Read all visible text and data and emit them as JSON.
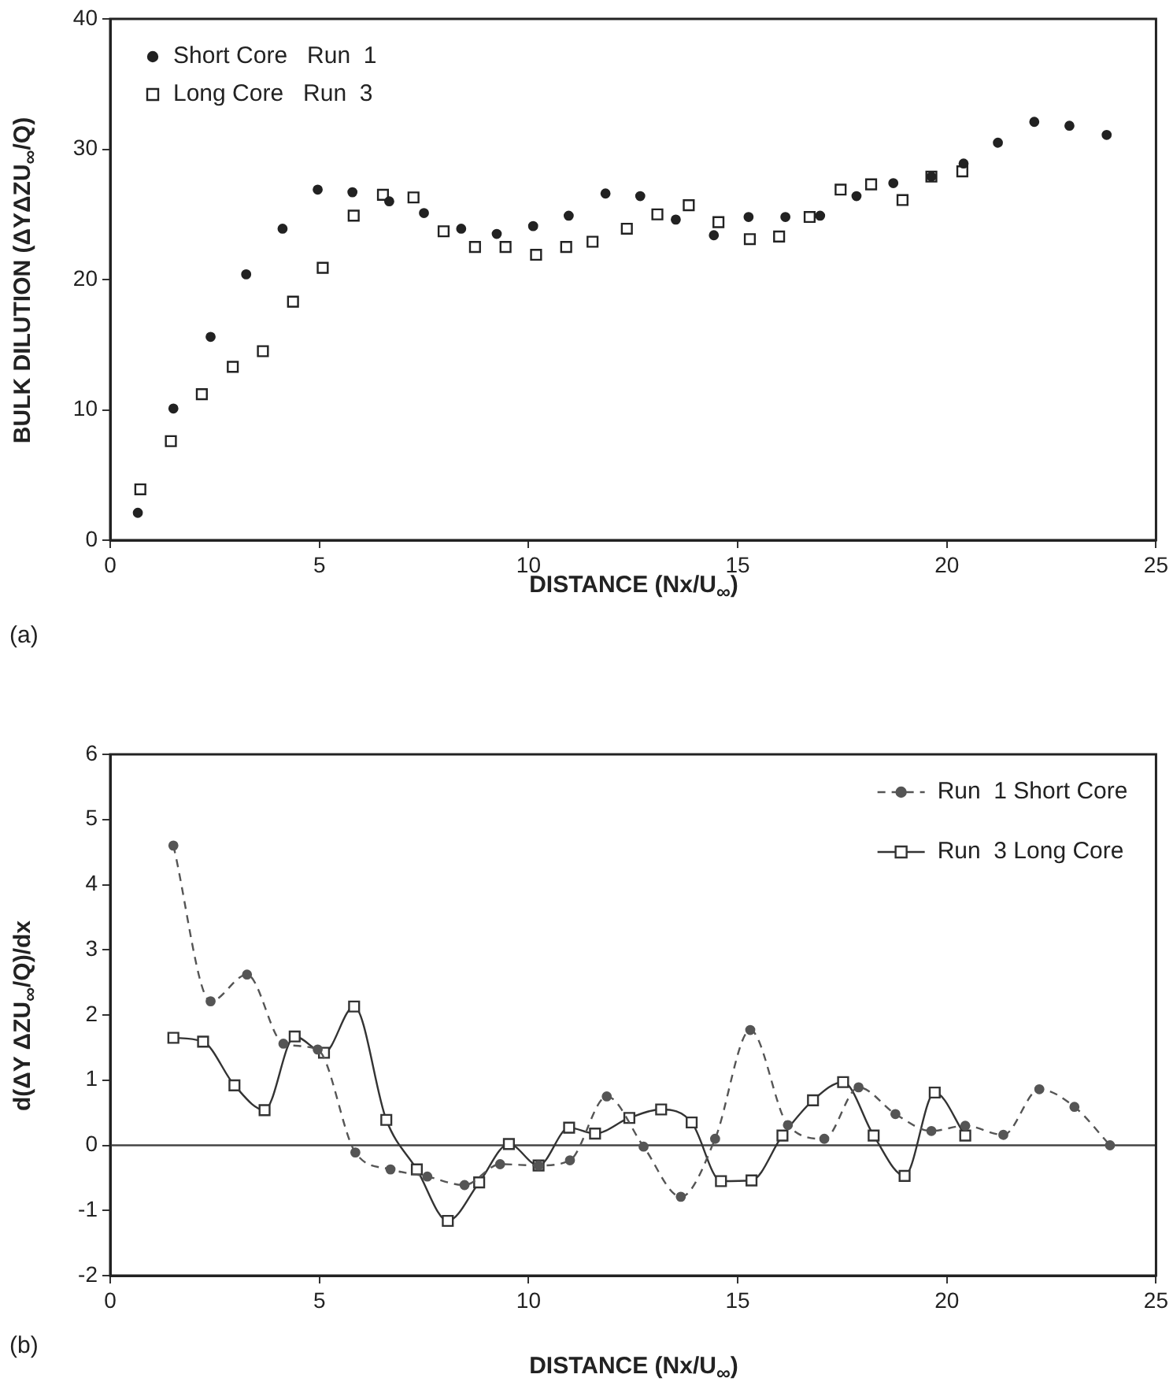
{
  "chart_data": [
    {
      "type": "scatter",
      "xlabel": "DISTANCE (Nx/U$_{∞}$)",
      "ylabel": "BULK DILUTION (ΔYΔZU$_{∞}$/Q)",
      "annotations": [
        "(a)"
      ],
      "xlim": [
        0,
        25
      ],
      "xticks": [
        0,
        5,
        10,
        15,
        20,
        25
      ],
      "ylim": [
        0,
        40
      ],
      "yticks": [
        0,
        10,
        20,
        30,
        40
      ],
      "legend": "top left",
      "series": [
        {
          "name": "Short Core   Run  1",
          "color": "#222222",
          "marker": "circle",
          "x": [
            0.66,
            1.51,
            2.4,
            3.25,
            4.12,
            4.96,
            5.79,
            6.67,
            7.5,
            8.39,
            9.24,
            10.11,
            10.96,
            11.84,
            12.67,
            13.52,
            14.43,
            15.26,
            16.14,
            16.97,
            17.84,
            18.72,
            19.63,
            20.4,
            21.22,
            22.09,
            22.93,
            23.82
          ],
          "values": [
            2.1,
            10.1,
            15.6,
            20.4,
            23.9,
            26.9,
            26.7,
            26,
            25.1,
            23.9,
            23.5,
            24.1,
            24.9,
            26.6,
            26.4,
            24.6,
            23.4,
            24.8,
            24.8,
            24.9,
            26.4,
            27.4,
            27.9,
            28.9,
            30.5,
            32.1,
            31.8,
            31.1
          ]
        },
        {
          "name": "Long Core   Run  3",
          "color": "#222222",
          "marker": "square",
          "x": [
            0.72,
            1.45,
            2.19,
            2.93,
            3.65,
            4.37,
            5.08,
            5.82,
            6.52,
            7.25,
            7.97,
            8.72,
            9.45,
            10.18,
            10.9,
            11.53,
            12.35,
            13.08,
            13.83,
            14.54,
            15.29,
            15.99,
            16.72,
            17.46,
            18.19,
            18.94,
            19.63,
            20.37
          ],
          "values": [
            3.9,
            7.6,
            11.2,
            13.3,
            14.5,
            18.3,
            20.9,
            24.9,
            26.5,
            26.3,
            23.7,
            22.5,
            22.5,
            21.9,
            22.5,
            22.9,
            23.9,
            25,
            25.7,
            24.4,
            23.1,
            23.3,
            24.8,
            26.9,
            27.3,
            26.1,
            27.9,
            28.3
          ]
        }
      ]
    },
    {
      "type": "line",
      "xlabel": "DISTANCE (Nx/U$_{∞}$)",
      "ylabel": "d(ΔY ΔZU$_{∞}$/Q)/dx",
      "annotations": [
        "(b)"
      ],
      "xlim": [
        0,
        25
      ],
      "xticks": [
        0,
        5,
        10,
        15,
        20,
        25
      ],
      "ylim": [
        -2,
        6
      ],
      "yticks": [
        -2,
        -1,
        0,
        1,
        2,
        3,
        4,
        5,
        6
      ],
      "legend": "top right",
      "ref_lines": [
        {
          "axis": "y",
          "value": 0,
          "color": "#444444"
        }
      ],
      "series": [
        {
          "name": "Run  1 Short Core",
          "color": "#555555",
          "marker": "circle",
          "line_style": "dashed",
          "x": [
            1.51,
            2.4,
            3.27,
            4.14,
            4.96,
            5.86,
            6.7,
            7.58,
            8.47,
            9.32,
            10.24,
            10.99,
            11.87,
            12.75,
            13.64,
            14.46,
            15.3,
            16.2,
            17.07,
            17.89,
            18.77,
            19.63,
            20.44,
            21.35,
            22.21,
            23.05,
            23.9
          ],
          "values": [
            4.6,
            2.21,
            2.62,
            1.56,
            1.47,
            -0.11,
            -0.37,
            -0.48,
            -0.61,
            -0.29,
            -0.31,
            -0.23,
            0.75,
            -0.02,
            -0.79,
            0.1,
            1.77,
            0.31,
            0.1,
            0.89,
            0.48,
            0.22,
            0.3,
            0.16,
            0.86,
            0.59,
            0
          ]
        },
        {
          "name": "Run  3 Long Core",
          "color": "#333333",
          "marker": "square",
          "line_style": "solid",
          "x": [
            1.51,
            2.22,
            2.97,
            3.69,
            4.41,
            5.11,
            5.83,
            6.6,
            7.33,
            8.07,
            8.82,
            9.53,
            10.24,
            10.97,
            11.59,
            12.41,
            13.17,
            13.9,
            14.6,
            15.33,
            16.07,
            16.8,
            17.52,
            18.25,
            18.99,
            19.71,
            20.44
          ],
          "values": [
            1.65,
            1.59,
            0.92,
            0.54,
            1.67,
            1.42,
            2.13,
            0.39,
            -0.37,
            -1.16,
            -0.57,
            0.02,
            -0.31,
            0.27,
            0.18,
            0.42,
            0.55,
            0.35,
            -0.55,
            -0.54,
            0.15,
            0.69,
            0.97,
            0.15,
            -0.47,
            0.81,
            0.15
          ]
        }
      ]
    }
  ]
}
